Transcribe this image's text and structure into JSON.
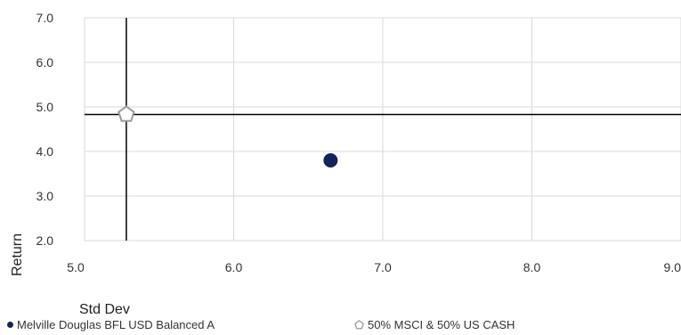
{
  "chart_data": {
    "type": "scatter",
    "xlabel": "Std Dev",
    "ylabel": "Return",
    "xlim": [
      5.0,
      9.0
    ],
    "ylim": [
      2.0,
      7.0
    ],
    "xticks": [
      "5.0",
      "6.0",
      "7.0",
      "8.0",
      "9.0"
    ],
    "yticks": [
      "2.0",
      "3.0",
      "4.0",
      "5.0",
      "6.0",
      "7.0"
    ],
    "grid": true,
    "legend_position": "bottom",
    "series": [
      {
        "name": "Melville Douglas BFL USD Balanced A",
        "marker": "circle",
        "color": "#14235a",
        "points": [
          {
            "x": 6.65,
            "y": 3.8
          }
        ]
      },
      {
        "name": "50% MSCI & 50% US CASH",
        "marker": "pentagon",
        "color": "#9a9a9a",
        "points": [
          {
            "x": 5.28,
            "y": 4.83
          }
        ]
      }
    ],
    "reference_lines": {
      "x": 5.28,
      "y": 4.83,
      "color": "#000000"
    }
  }
}
